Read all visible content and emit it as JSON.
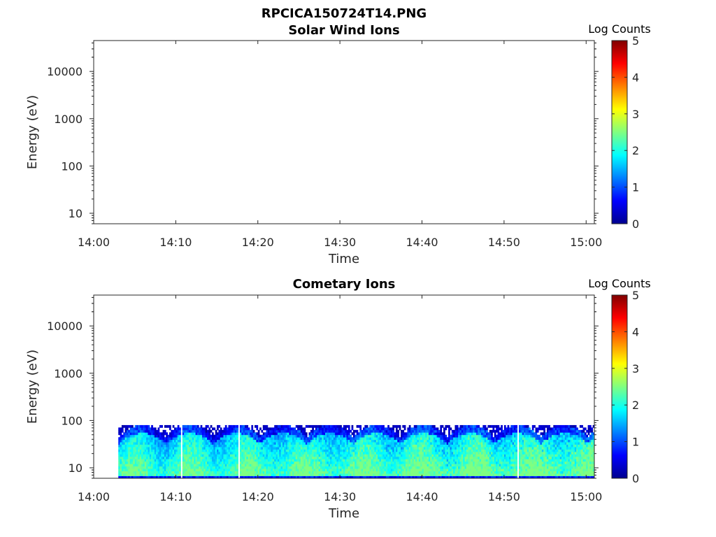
{
  "figure_title": "RPCICA150724T14.PNG",
  "colormap_stops": [
    "#00008f",
    "#0000ff",
    "#0080ff",
    "#00ffff",
    "#80ff80",
    "#ffff00",
    "#ff8000",
    "#ff0000",
    "#800000"
  ],
  "chart_data": [
    {
      "type": "heatmap",
      "title": "Solar Wind Ions",
      "xlabel": "Time",
      "ylabel": "Energy (eV)",
      "x_ticks": [
        "14:00",
        "14:10",
        "14:20",
        "14:30",
        "14:40",
        "14:50",
        "15:00"
      ],
      "y_ticks": [
        "10",
        "100",
        "1000",
        "10000"
      ],
      "y_scale": "log",
      "ylim": [
        6,
        45000
      ],
      "xlim": [
        "14:00",
        "15:01"
      ],
      "colorbar": {
        "title": "Log Counts",
        "ticks": [
          "0",
          "1",
          "2",
          "3",
          "4",
          "5"
        ],
        "range": [
          0,
          5
        ]
      },
      "data": "empty"
    },
    {
      "type": "heatmap",
      "title": "Cometary Ions",
      "xlabel": "Time",
      "ylabel": "Energy (eV)",
      "x_ticks": [
        "14:00",
        "14:10",
        "14:20",
        "14:30",
        "14:40",
        "14:50",
        "15:00"
      ],
      "y_ticks": [
        "10",
        "100",
        "1000",
        "10000"
      ],
      "y_scale": "log",
      "ylim": [
        6,
        45000
      ],
      "xlim": [
        "14:00",
        "15:01"
      ],
      "colorbar": {
        "title": "Log Counts",
        "ticks": [
          "0",
          "1",
          "2",
          "3",
          "4",
          "5"
        ],
        "range": [
          0,
          5
        ]
      },
      "data_start": "14:03",
      "data_end": "15:01",
      "energy_max_ev": 80,
      "energy_min_ev": 6,
      "typical_log_counts": [
        0,
        2.5
      ]
    }
  ]
}
